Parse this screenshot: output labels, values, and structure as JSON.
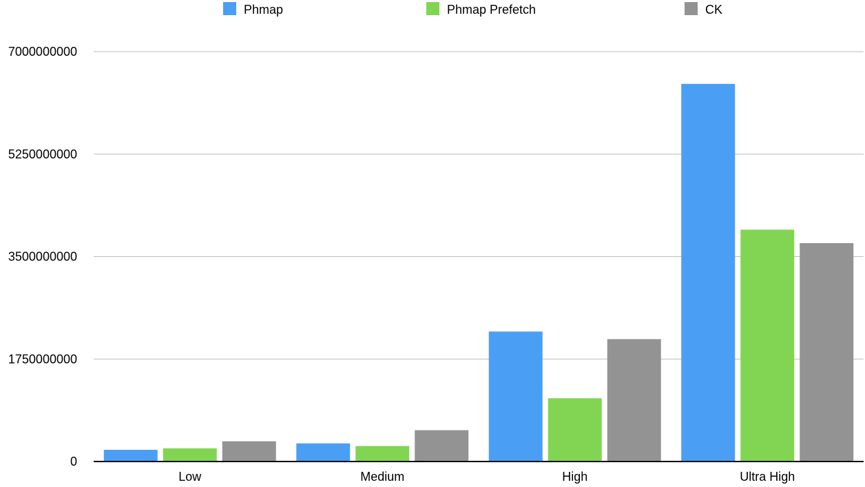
{
  "chart_data": {
    "type": "bar",
    "title": "",
    "xlabel": "",
    "ylabel": "",
    "categories": [
      "Low",
      "Medium",
      "High",
      "Ultra High"
    ],
    "series": [
      {
        "name": "Phmap",
        "color": "#4A9FF5",
        "values": [
          200000000,
          310000000,
          2220000000,
          6450000000
        ]
      },
      {
        "name": "Phmap Prefetch",
        "color": "#82D552",
        "values": [
          225000000,
          265000000,
          1080000000,
          3960000000
        ]
      },
      {
        "name": "CK",
        "color": "#939393",
        "values": [
          345000000,
          535000000,
          2090000000,
          3730000000
        ]
      }
    ],
    "ylim": [
      0,
      7000000000
    ],
    "yticks": [
      0,
      1750000000,
      3500000000,
      5250000000,
      7000000000
    ],
    "ytick_labels": [
      "0",
      "1750000000",
      "3500000000",
      "5250000000",
      "7000000000"
    ],
    "grid": true,
    "legend": "top"
  }
}
